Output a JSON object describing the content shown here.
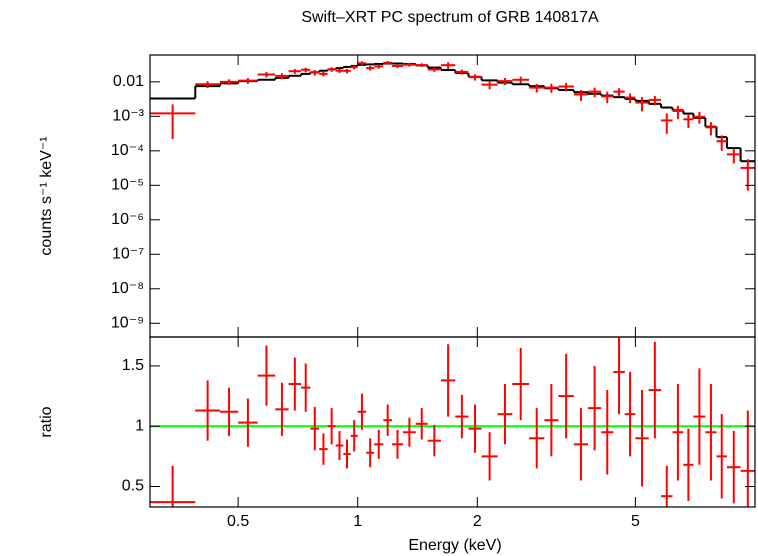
{
  "chart_data": {
    "type": "spectrum",
    "title": "Swift–XRT PC spectrum of GRB 140817A",
    "xlabel": "Energy (keV)",
    "xlog": true,
    "xlim": [
      0.3,
      10
    ],
    "xticks": [
      0.5,
      1,
      2,
      5
    ],
    "x_lo": [
      0.3,
      0.39,
      0.45,
      0.5,
      0.56,
      0.62,
      0.67,
      0.72,
      0.76,
      0.8,
      0.84,
      0.88,
      0.92,
      0.96,
      1.0,
      1.05,
      1.1,
      1.16,
      1.22,
      1.3,
      1.4,
      1.5,
      1.62,
      1.76,
      1.9,
      2.05,
      2.25,
      2.45,
      2.7,
      2.95,
      3.2,
      3.5,
      3.8,
      4.1,
      4.4,
      4.7,
      5.0,
      5.4,
      5.8,
      6.2,
      6.6,
      7.0,
      7.5,
      8.0,
      8.5,
      9.2
    ],
    "x_hi": [
      0.39,
      0.45,
      0.5,
      0.56,
      0.62,
      0.67,
      0.72,
      0.76,
      0.8,
      0.84,
      0.88,
      0.92,
      0.96,
      1.0,
      1.05,
      1.1,
      1.16,
      1.22,
      1.3,
      1.4,
      1.5,
      1.62,
      1.76,
      1.9,
      2.05,
      2.25,
      2.45,
      2.7,
      2.95,
      3.2,
      3.5,
      3.8,
      4.1,
      4.4,
      4.7,
      5.0,
      5.4,
      5.8,
      6.2,
      6.6,
      7.0,
      7.5,
      8.0,
      8.5,
      9.2,
      10
    ],
    "panels": [
      {
        "ylabel": "counts s⁻¹ keV⁻¹",
        "ylog": true,
        "ylim": [
          4e-10,
          0.06
        ],
        "yticks": [
          0.01,
          {
            "value": 0.001,
            "label": "10⁻³"
          },
          {
            "value": 0.0001,
            "label": "10⁻⁴"
          },
          {
            "value": 1e-05,
            "label": "10⁻⁵"
          },
          {
            "value": 1e-06,
            "label": "10⁻⁶"
          },
          {
            "value": 1e-07,
            "label": "10⁻⁷"
          },
          {
            "value": 1e-08,
            "label": "10⁻⁸"
          },
          {
            "value": 1e-09,
            "label": "10⁻⁹"
          }
        ],
        "data_color": "#ff0000",
        "values": [
          0.00122,
          0.0085,
          0.01,
          0.0108,
          0.0163,
          0.0148,
          0.0203,
          0.0224,
          0.0186,
          0.017,
          0.023,
          0.021,
          0.0208,
          0.0267,
          0.0347,
          0.025,
          0.0281,
          0.0357,
          0.0289,
          0.0314,
          0.0306,
          0.0229,
          0.0304,
          0.0194,
          0.0137,
          0.0083,
          0.0105,
          0.0115,
          0.0068,
          0.0068,
          0.0073,
          0.0043,
          0.0052,
          0.0038,
          0.0052,
          0.0035,
          0.0025,
          0.003,
          0.00076,
          0.00143,
          0.00082,
          0.00097,
          0.00048,
          0.00019,
          7.9e-05,
          3.2e-05
        ],
        "errors": [
          0.001,
          0.0019,
          0.0018,
          0.0021,
          0.0029,
          0.0029,
          0.0033,
          0.0034,
          0.0034,
          0.0027,
          0.0035,
          0.003,
          0.0032,
          0.0038,
          0.0047,
          0.0038,
          0.004,
          0.0044,
          0.0041,
          0.004,
          0.0039,
          0.0034,
          0.0066,
          0.0032,
          0.0028,
          0.0022,
          0.0024,
          0.0026,
          0.0019,
          0.002,
          0.002,
          0.0015,
          0.0016,
          0.0014,
          0.0013,
          0.0011,
          0.0011,
          0.0009,
          0.00045,
          0.0006,
          0.00036,
          0.00036,
          0.0002,
          9e-05,
          3.6e-05,
          2.5e-05
        ],
        "model_color": "#000000",
        "model": [
          0.0033,
          0.0075,
          0.009,
          0.0105,
          0.0115,
          0.013,
          0.015,
          0.017,
          0.019,
          0.021,
          0.023,
          0.025,
          0.027,
          0.029,
          0.031,
          0.032,
          0.033,
          0.034,
          0.034,
          0.033,
          0.03,
          0.026,
          0.022,
          0.018,
          0.014,
          0.011,
          0.0095,
          0.0085,
          0.0075,
          0.0065,
          0.0058,
          0.005,
          0.0045,
          0.004,
          0.0036,
          0.0032,
          0.0028,
          0.0023,
          0.0018,
          0.0015,
          0.0012,
          0.0009,
          0.0005,
          0.00025,
          0.00012,
          5e-05
        ]
      },
      {
        "ylabel": "ratio",
        "ylog": false,
        "ylim": [
          0.33,
          1.74
        ],
        "yticks": [
          0.5,
          1,
          1.5
        ],
        "data_color": "#ff0000",
        "values": [
          0.37,
          1.13,
          1.12,
          1.03,
          1.42,
          1.14,
          1.35,
          1.32,
          0.98,
          0.81,
          1.0,
          0.84,
          0.77,
          0.92,
          1.12,
          0.78,
          0.85,
          1.05,
          0.85,
          0.95,
          1.02,
          0.88,
          1.38,
          1.08,
          0.98,
          0.75,
          1.1,
          1.35,
          0.9,
          1.05,
          1.25,
          0.85,
          1.15,
          0.95,
          1.45,
          1.1,
          0.9,
          1.3,
          0.42,
          0.95,
          0.68,
          1.08,
          0.95,
          0.75,
          0.66,
          0.63
        ],
        "errors": [
          0.3,
          0.25,
          0.2,
          0.2,
          0.25,
          0.22,
          0.22,
          0.2,
          0.18,
          0.13,
          0.15,
          0.12,
          0.12,
          0.13,
          0.15,
          0.12,
          0.12,
          0.13,
          0.12,
          0.12,
          0.13,
          0.13,
          0.3,
          0.18,
          0.2,
          0.2,
          0.25,
          0.3,
          0.25,
          0.3,
          0.35,
          0.3,
          0.35,
          0.35,
          0.35,
          0.35,
          0.4,
          0.4,
          0.25,
          0.4,
          0.3,
          0.4,
          0.4,
          0.35,
          0.3,
          0.5
        ],
        "reference": 1,
        "reference_color": "#00ff00"
      }
    ]
  }
}
